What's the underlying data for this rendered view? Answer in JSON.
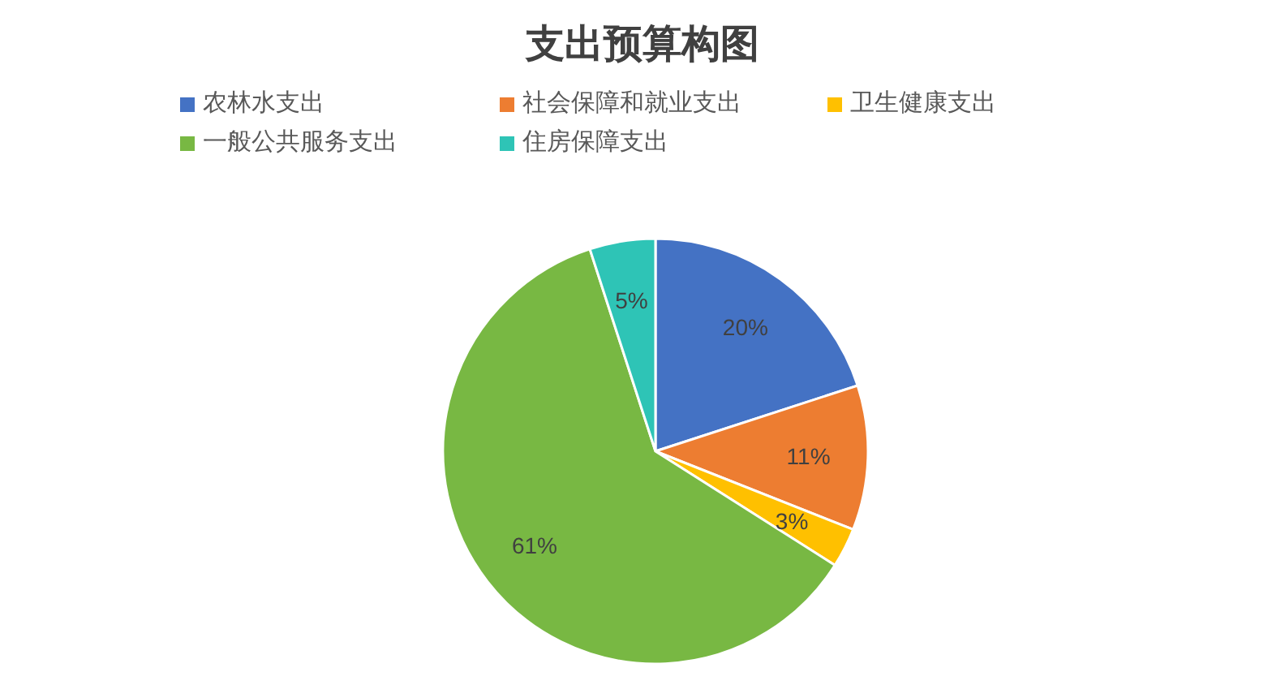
{
  "chart_data": {
    "type": "pie",
    "title": "支出预算构图",
    "categories": [
      "农林水支出",
      "社会保障和就业支出",
      "卫生健康支出",
      "一般公共服务支出",
      "住房保障支出"
    ],
    "values": [
      20,
      11,
      3,
      61,
      5
    ],
    "value_labels": [
      "20%",
      "11%",
      "3%",
      "61%",
      "5%"
    ],
    "colors": [
      "#4472c4",
      "#ed7d31",
      "#ffc000",
      "#78b843",
      "#2ec4b6"
    ],
    "legend": "top"
  }
}
